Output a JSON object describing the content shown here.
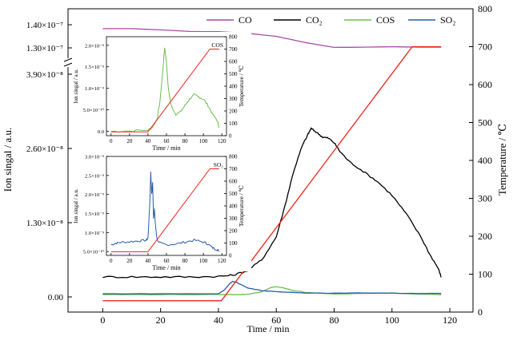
{
  "chart_data": [
    {
      "type": "line",
      "xlabel": "Time / min",
      "ylabel": "Ion singal / a.u.",
      "y2label": "Temperature / ℃",
      "xlim": [
        -12,
        128
      ],
      "y2lim": [
        0,
        800
      ],
      "x_ticks": [
        "0",
        "20",
        "40",
        "60",
        "80",
        "100",
        "120"
      ],
      "y_ticks_left": [
        "0.00",
        "1.30×10⁻⁸",
        "2.60×10⁻⁸",
        "3.90×10⁻⁸",
        "1.30×10⁻⁷",
        "1.40×10⁻⁷"
      ],
      "y_ticks_right": [
        "0",
        "100",
        "200",
        "300",
        "400",
        "500",
        "600",
        "700",
        "800"
      ],
      "axis_break": "between 3.90×10⁻⁸ and 1.30×10⁻⁷",
      "legend_position": "top",
      "series": [
        {
          "name": "CO",
          "color": "#a64ca6",
          "axis": "left-upper",
          "x": [
            0,
            10,
            20,
            30,
            40,
            50,
            60,
            70,
            80,
            90,
            100,
            110,
            117
          ],
          "y": [
            1.383e-07,
            1.383e-07,
            1.378e-07,
            1.371e-07,
            1.37e-07,
            1.363e-07,
            1.35e-07,
            1.323e-07,
            1.302e-07,
            1.303e-07,
            1.305e-07,
            1.303e-07,
            1.303e-07
          ]
        },
        {
          "name": "CO₂",
          "color": "#000000",
          "axis": "left",
          "x": [
            0,
            10,
            20,
            30,
            40,
            45,
            50,
            55,
            60,
            63,
            66,
            69,
            71,
            72,
            74,
            76,
            78,
            80,
            82,
            85,
            90,
            95,
            100,
            105,
            110,
            113,
            116,
            117
          ],
          "y": [
            3.5e-09,
            3.5e-09,
            3.5e-09,
            3.5e-09,
            3.6e-09,
            3.8e-09,
            4.6e-09,
            6.5e-09,
            1.05e-08,
            1.6e-08,
            2.2e-08,
            2.65e-08,
            2.85e-08,
            2.95e-08,
            2.88e-08,
            2.8e-08,
            2.78e-08,
            2.7e-08,
            2.55e-08,
            2.38e-08,
            2.2e-08,
            2.02e-08,
            1.78e-08,
            1.45e-08,
            1.05e-08,
            7.5e-09,
            5e-09,
            3.5e-09
          ]
        },
        {
          "name": "COS",
          "color": "#6abf4b",
          "axis": "left",
          "x": [
            0,
            20,
            40,
            45,
            50,
            55,
            58,
            60,
            63,
            66,
            70,
            80,
            90,
            100,
            110,
            117
          ],
          "y": [
            4e-10,
            4e-10,
            4e-10,
            4e-10,
            4.5e-10,
            9e-10,
            1.6e-09,
            1.8e-09,
            1.5e-09,
            1.1e-09,
            8e-10,
            5e-10,
            6e-10,
            7e-10,
            5e-10,
            4e-10
          ]
        },
        {
          "name": "SO₂",
          "color": "#2a5aa8",
          "axis": "left",
          "x": [
            0,
            20,
            40,
            42,
            44,
            45,
            46,
            48,
            50,
            55,
            60,
            70,
            80,
            90,
            100,
            110,
            117
          ],
          "y": [
            5.5e-10,
            5.5e-10,
            5.5e-10,
            1.2e-09,
            2.4e-09,
            2.7e-09,
            2.6e-09,
            2.1e-09,
            1.6e-09,
            1.1e-09,
            9e-10,
            7e-10,
            6.5e-10,
            7e-10,
            6.5e-10,
            6e-10,
            6e-10
          ]
        },
        {
          "name": "Temperature",
          "color": "#e8261c",
          "axis": "right",
          "x": [
            0,
            41,
            107,
            117
          ],
          "y": [
            30,
            30,
            700,
            700
          ]
        }
      ]
    },
    {
      "type": "line",
      "label": "COS",
      "xlabel": "Time / min",
      "ylabel": "Ion singal / a.u.",
      "y2label": "Temperature / ℃",
      "xlim": [
        -5,
        125
      ],
      "ylim": [
        -1e-10,
        2.2e-09
      ],
      "y2lim": [
        0,
        800
      ],
      "x_ticks": [
        "0",
        "20",
        "40",
        "60",
        "80",
        "100",
        "120"
      ],
      "y_ticks_left": [
        "0.0",
        "5.0×10⁻¹⁰",
        "1.0×10⁻⁹",
        "1.5×10⁻⁹",
        "2.0×10⁻⁹"
      ],
      "y_ticks_right": [
        "0",
        "100",
        "200",
        "300",
        "400",
        "500",
        "600",
        "700",
        "800"
      ],
      "series": [
        {
          "name": "COS",
          "color": "#6abf4b",
          "x": [
            0,
            20,
            40,
            45,
            50,
            53,
            56,
            58,
            60,
            62,
            65,
            70,
            75,
            80,
            85,
            90,
            95,
            100,
            105,
            110,
            115,
            117
          ],
          "y": [
            0,
            1e-11,
            3e-11,
            1e-10,
            3e-10,
            7e-10,
            1.4e-09,
            1.95e-09,
            1.6e-09,
            1e-09,
            6e-10,
            4e-10,
            4.5e-10,
            6e-10,
            7.5e-10,
            8.5e-10,
            8e-10,
            7.5e-10,
            6e-10,
            4e-10,
            2.5e-10,
            1e-10
          ]
        },
        {
          "name": "Temperature",
          "color": "#e8261c",
          "axis": "right",
          "x": [
            0,
            40,
            107,
            117
          ],
          "y": [
            30,
            30,
            700,
            700
          ]
        }
      ]
    },
    {
      "type": "line",
      "label": "SO₂",
      "xlabel": "Time / min",
      "ylabel": "Ion singal / a.u.",
      "y2label": "Temperature / ℃",
      "xlim": [
        -5,
        125
      ],
      "ylim": [
        4e-10,
        3e-09
      ],
      "y2lim": [
        0,
        800
      ],
      "x_ticks": [
        "0",
        "20",
        "40",
        "60",
        "80",
        "100",
        "120"
      ],
      "y_ticks_left": [
        "5.0×10⁻¹⁰",
        "1.0×10⁻⁹",
        "1.5×10⁻⁹",
        "2.0×10⁻⁹",
        "2.5×10⁻⁹",
        "3.0×10⁻⁹"
      ],
      "y_ticks_right": [
        "0",
        "100",
        "200",
        "300",
        "400",
        "500",
        "600",
        "700",
        "800"
      ],
      "series": [
        {
          "name": "SO₂",
          "color": "#2a5aa8",
          "x": [
            0,
            5,
            10,
            20,
            30,
            38,
            40,
            42,
            43,
            44,
            45,
            46,
            47,
            48,
            50,
            55,
            60,
            70,
            80,
            90,
            100,
            105,
            110,
            115,
            117
          ],
          "y": [
            6.8e-10,
            7.2e-10,
            7.4e-10,
            7.6e-10,
            7.8e-10,
            8e-10,
            8.5e-10,
            1.8e-09,
            2.6e-09,
            2e-09,
            2.3e-09,
            1.4e-09,
            1.6e-09,
            1.2e-09,
            8e-10,
            7e-10,
            6.8e-10,
            7e-10,
            7.5e-10,
            8e-10,
            7.5e-10,
            7e-10,
            6e-10,
            5.5e-10,
            5.2e-10
          ]
        },
        {
          "name": "Temperature",
          "color": "#e8261c",
          "axis": "right",
          "x": [
            0,
            40,
            107,
            117
          ],
          "y": [
            30,
            30,
            700,
            700
          ]
        }
      ]
    }
  ]
}
